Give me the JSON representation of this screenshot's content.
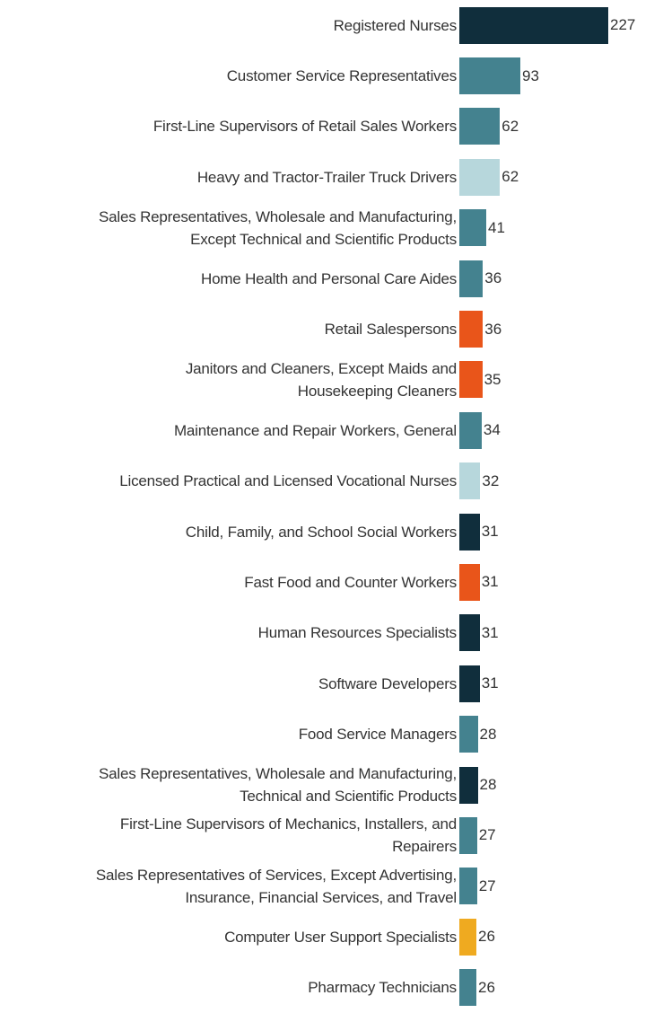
{
  "chart_data": {
    "type": "bar",
    "orientation": "horizontal",
    "title": "",
    "xlabel": "",
    "ylabel": "",
    "grid": false,
    "legend": false,
    "axes_shown": false,
    "value_labels": "end-of-bar",
    "xlim": [
      0,
      240
    ],
    "categories": [
      "Registered Nurses",
      "Customer Service Representatives",
      "First-Line Supervisors of Retail Sales Workers",
      "Heavy and Tractor-Trailer Truck Drivers",
      "Sales Representatives, Wholesale and Manufacturing,\nExcept Technical and Scientific Products",
      "Home Health and Personal Care Aides",
      "Retail Salespersons",
      "Janitors and Cleaners, Except Maids and\nHousekeeping Cleaners",
      "Maintenance and Repair Workers, General",
      "Licensed Practical and Licensed Vocational Nurses",
      "Child, Family, and School Social Workers",
      "Fast Food and Counter Workers",
      "Human Resources Specialists",
      "Software Developers",
      "Food Service Managers",
      "Sales Representatives, Wholesale and Manufacturing,\nTechnical and Scientific Products",
      "First-Line Supervisors of Mechanics, Installers, and\nRepairers",
      "Sales Representatives of Services, Except Advertising,\nInsurance, Financial Services, and Travel",
      "Computer User Support Specialists",
      "Pharmacy Technicians"
    ],
    "values": [
      227,
      93,
      62,
      62,
      41,
      36,
      36,
      35,
      34,
      32,
      31,
      31,
      31,
      31,
      28,
      28,
      27,
      27,
      26,
      26
    ],
    "bar_colors": [
      "#102e3c",
      "#44828f",
      "#44828f",
      "#b7d7dc",
      "#44828f",
      "#44828f",
      "#e9551a",
      "#e9551a",
      "#44828f",
      "#b7d7dc",
      "#102e3c",
      "#e9551a",
      "#102e3c",
      "#102e3c",
      "#44828f",
      "#102e3c",
      "#44828f",
      "#44828f",
      "#efaa20",
      "#44828f"
    ],
    "palette": {
      "navy": "#102e3c",
      "teal": "#44828f",
      "light_blue": "#b7d7dc",
      "orange": "#e9551a",
      "amber": "#efaa20"
    },
    "text_color": "#333333",
    "background_color": "#ffffff"
  }
}
